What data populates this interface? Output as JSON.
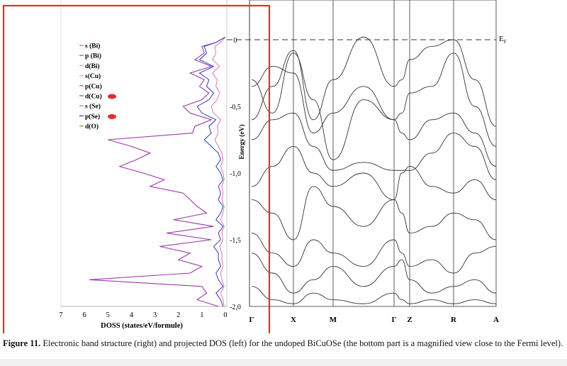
{
  "chart_data": [
    {
      "type": "line",
      "panel": "projected DOS (left)",
      "xlabel": "DOSS (states/eV/formule)",
      "x_ticks": [
        "7",
        "6",
        "5",
        "4",
        "3",
        "2",
        "1",
        "0"
      ],
      "x_reversed": true,
      "ylabel": "Energy (eV)",
      "y_ticks": [
        "0",
        "-0,5",
        "-1,0",
        "-1,5",
        "-2,0"
      ],
      "ylim": [
        -2.0,
        0.1
      ],
      "legend_position": "top-left",
      "series": [
        {
          "name": "s (Bi)",
          "color": "#e0559a"
        },
        {
          "name": "p (Bi)",
          "color": "#b04a7a"
        },
        {
          "name": "d(Bi)",
          "color": "#e08fb6"
        },
        {
          "name": "s(Cu)",
          "color": "#f29ab8"
        },
        {
          "name": "p(Cu)",
          "color": "#d44a88"
        },
        {
          "name": "d(Cu)",
          "color": "#9a3aa8",
          "marked": true
        },
        {
          "name": "s (Se)",
          "color": "#7c8cd6"
        },
        {
          "name": "p(Se)",
          "color": "#2a3fb2",
          "marked": true
        },
        {
          "name": "d(O)",
          "color": "#8a8f4a"
        }
      ],
      "main_curve": {
        "energy": [
          0.02,
          -0.02,
          -0.05,
          -0.1,
          -0.15,
          -0.2,
          -0.25,
          -0.3,
          -0.35,
          -0.4,
          -0.45,
          -0.5,
          -0.55,
          -0.6,
          -0.65,
          -0.7,
          -0.75,
          -0.8,
          -0.85,
          -0.9,
          -0.95,
          -1.0,
          -1.05,
          -1.1,
          -1.15,
          -1.2,
          -1.25,
          -1.3,
          -1.35,
          -1.4,
          -1.45,
          -1.5,
          -1.55,
          -1.6,
          -1.65,
          -1.7,
          -1.75,
          -1.8,
          -1.85,
          -1.9,
          -1.95,
          -2.0
        ],
        "dos": [
          0.0,
          0.4,
          1.0,
          0.9,
          1.3,
          0.6,
          1.5,
          0.9,
          1.1,
          0.7,
          1.0,
          1.8,
          1.5,
          0.6,
          1.3,
          1.4,
          5.0,
          4.0,
          3.2,
          3.8,
          4.5,
          3.5,
          2.6,
          3.2,
          1.8,
          1.5,
          1.2,
          0.8,
          2.2,
          0.5,
          2.5,
          0.6,
          2.8,
          1.5,
          2.0,
          1.0,
          1.5,
          5.8,
          1.0,
          0.8,
          1.2,
          0.3
        ]
      },
      "pdos_curve": {
        "energy": [
          0.02,
          -0.02,
          -0.05,
          -0.1,
          -0.15,
          -0.2,
          -0.25,
          -0.3,
          -0.35,
          -0.4,
          -0.45,
          -0.5,
          -0.55,
          -0.6,
          -0.65,
          -0.7,
          -0.75,
          -0.8,
          -0.85,
          -0.9,
          -0.95,
          -1.0,
          -1.05,
          -1.1,
          -1.15,
          -1.2,
          -1.25,
          -1.3,
          -1.35,
          -1.4,
          -1.45,
          -1.5,
          -1.55,
          -1.6,
          -1.65,
          -1.7,
          -1.75,
          -1.8,
          -1.85,
          -1.9,
          -1.95,
          -2.0
        ],
        "dos": [
          0.0,
          0.4,
          0.9,
          0.8,
          1.1,
          0.5,
          1.1,
          0.7,
          0.8,
          0.5,
          0.7,
          1.2,
          1.0,
          0.4,
          0.7,
          0.6,
          0.9,
          0.6,
          0.3,
          0.2,
          0.4,
          0.2,
          0.1,
          0.3,
          0.2,
          0.3,
          0.1,
          0.2,
          0.4,
          0.1,
          0.3,
          0.2,
          0.5,
          0.3,
          0.3,
          0.2,
          0.4,
          0.3,
          0.1,
          0.4,
          0.2,
          0.1
        ]
      }
    },
    {
      "type": "line",
      "panel": "electronic band structure (right)",
      "k_labels": [
        "Γ",
        "X",
        "M",
        "Γ",
        "Z",
        "R",
        "A"
      ],
      "fermi_label": "EF",
      "ylim": [
        -2.0,
        0.1
      ],
      "bands": [
        {
          "k": [
            0,
            0.5,
            1,
            1.5,
            2,
            2.5,
            3,
            3.5,
            4,
            4.5,
            5,
            5.5,
            6
          ],
          "energy": [
            -0.6,
            -0.35,
            -0.08,
            -0.6,
            -0.3,
            0.02,
            -0.35,
            -0.3,
            -0.15,
            -0.05,
            0.0,
            -0.3,
            -0.65
          ]
        },
        {
          "k": [
            0,
            0.5,
            1,
            1.5,
            2,
            2.5,
            3,
            3.5,
            4,
            4.5,
            5,
            5.5,
            6
          ],
          "energy": [
            -0.3,
            -0.55,
            -0.1,
            -0.45,
            -0.9,
            -0.45,
            -0.6,
            -0.55,
            -0.4,
            -0.35,
            -0.1,
            -0.5,
            -0.8
          ]
        },
        {
          "k": [
            0,
            0.5,
            1,
            1.5,
            2,
            2.5,
            3,
            3.5,
            4,
            4.5,
            5,
            5.5,
            6
          ],
          "energy": [
            -0.35,
            -0.2,
            -0.25,
            -0.7,
            -0.55,
            -0.35,
            -0.6,
            -0.7,
            -0.75,
            -0.6,
            -0.55,
            -0.7,
            -0.95
          ]
        },
        {
          "k": [
            0,
            0.5,
            1,
            1.5,
            2,
            2.5,
            3,
            3.5,
            4,
            4.5,
            5,
            5.5,
            6
          ],
          "energy": [
            -0.75,
            -0.6,
            -0.55,
            -0.8,
            -0.98,
            -0.92,
            -0.98,
            -0.98,
            -0.98,
            -0.85,
            -0.7,
            -0.8,
            -1.05
          ]
        },
        {
          "k": [
            0,
            0.5,
            1,
            1.5,
            2,
            2.5,
            3,
            3.5,
            4,
            4.5,
            5,
            5.5,
            6
          ],
          "energy": [
            -1.1,
            -0.95,
            -0.8,
            -1.0,
            -1.1,
            -1.0,
            -1.2,
            -1.0,
            -0.95,
            -1.1,
            -1.15,
            -1.05,
            -1.2
          ]
        },
        {
          "k": [
            0,
            0.5,
            1,
            1.5,
            2,
            2.5,
            3,
            3.5,
            4,
            4.5,
            5,
            5.5,
            6
          ],
          "energy": [
            -1.2,
            -1.3,
            -1.5,
            -1.1,
            -1.25,
            -1.4,
            -1.2,
            -1.3,
            -1.45,
            -1.4,
            -1.3,
            -1.35,
            -1.5
          ]
        },
        {
          "k": [
            0,
            0.5,
            1,
            1.5,
            2,
            2.5,
            3,
            3.5,
            4,
            4.5,
            5,
            5.5,
            6
          ],
          "energy": [
            -1.45,
            -1.6,
            -1.7,
            -1.5,
            -1.6,
            -1.7,
            -1.5,
            -1.6,
            -1.7,
            -1.65,
            -1.75,
            -1.6,
            -1.55
          ]
        },
        {
          "k": [
            0,
            0.5,
            1,
            1.5,
            2,
            2.5,
            3,
            3.5,
            4,
            4.5,
            5,
            5.5,
            6
          ],
          "energy": [
            -1.6,
            -1.75,
            -1.9,
            -1.8,
            -1.7,
            -1.85,
            -1.7,
            -1.65,
            -1.8,
            -1.9,
            -1.85,
            -1.8,
            -1.9
          ]
        },
        {
          "k": [
            0,
            0.5,
            1,
            1.5,
            2,
            2.5,
            3,
            3.5,
            4,
            4.5,
            5,
            5.5,
            6
          ],
          "energy": [
            -1.85,
            -1.95,
            -1.98,
            -1.9,
            -1.95,
            -1.98,
            -1.9,
            -1.95,
            -1.98,
            -1.95,
            -1.98,
            -1.95,
            -1.98
          ]
        }
      ]
    }
  ],
  "caption": {
    "label": "Figure 11.",
    "text": " Electronic band structure (right) and projected DOS (left) for the undoped BiCuOSe (the bottom part is a magnified view close to the Fermi level)."
  },
  "highlight": {
    "color": "#e03030"
  }
}
